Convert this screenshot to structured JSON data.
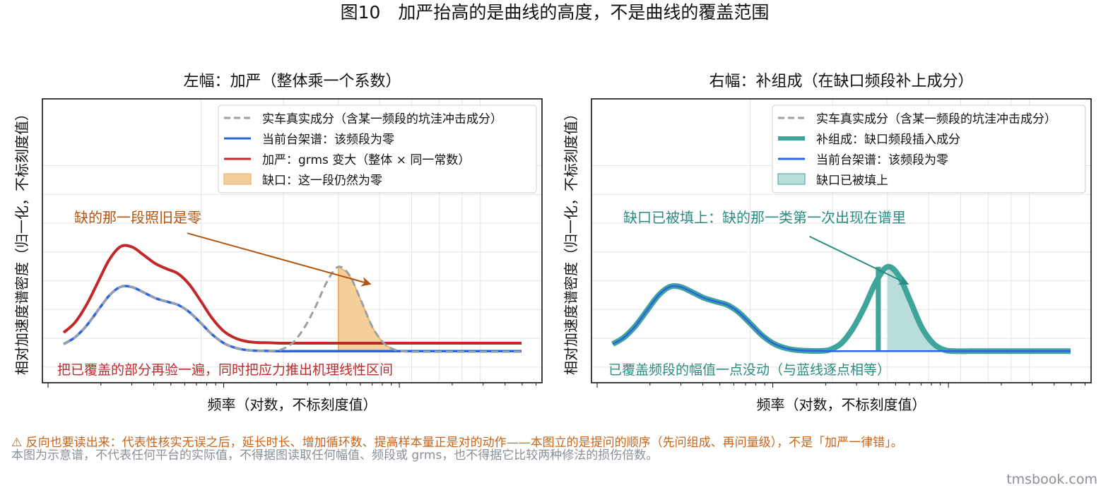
{
  "figure": {
    "title": "图10　加严抬高的是曲线的高度，不是曲线的覆盖范围",
    "warning": "⚠ 反向也要读出来：代表性核实无误之后，延长时长、增加循环数、提高样本量正是对的动作——本图立的是提问的顺序（先问组成、再问量级），不是「加严一律错」。",
    "disclaimer": "本图为示意谱，不代表任何平台的实际值，不得据图读取任何幅值、频段或 grms，也不得据它比较两种修法的损伤倍数。",
    "brand": "tmsbook.com"
  },
  "colors": {
    "truth": "#9aa0a8",
    "current": "#2b63e0",
    "severe": "#c0282a",
    "gap_fill": "#f5cf9a",
    "gap_edge": "#e5a75a",
    "fill_green": "#3fa59a",
    "fill_green_light": "#b9ddd9",
    "annot_orange": "#b5520d",
    "annot_red": "#c0282a",
    "annot_teal": "#2a8c80"
  },
  "chart_data": [
    {
      "type": "line",
      "title": "左幅：加严（整体乘一个系数）",
      "xlabel": "频率（对数，不标刻度值）",
      "ylabel": "相对加速度谱密度（归一化，不标刻度值）",
      "xscale": "log",
      "xlim": [
        0,
        1
      ],
      "ylim": [
        0,
        1
      ],
      "grid": true,
      "legend_position": "top-right",
      "x": [
        0.0,
        0.025,
        0.05,
        0.075,
        0.1,
        0.125,
        0.15,
        0.175,
        0.2,
        0.225,
        0.25,
        0.275,
        0.3,
        0.325,
        0.35,
        0.375,
        0.4,
        0.425,
        0.45,
        0.475,
        0.5,
        0.525,
        0.55,
        0.575,
        0.6,
        0.625,
        0.65,
        0.675,
        0.7,
        0.725,
        0.75,
        0.775,
        0.8,
        0.825,
        0.85,
        0.875,
        0.9,
        0.925,
        0.95,
        0.975,
        1.0
      ],
      "series": [
        {
          "name": "实车真实成分（含某一频段的坑洼冲击成分）",
          "style": "dashed",
          "values": [
            0.104,
            0.135,
            0.187,
            0.256,
            0.324,
            0.363,
            0.361,
            0.337,
            0.312,
            0.296,
            0.281,
            0.248,
            0.198,
            0.146,
            0.108,
            0.087,
            0.077,
            0.074,
            0.073,
            0.079,
            0.109,
            0.176,
            0.272,
            0.385,
            0.453,
            0.412,
            0.298,
            0.179,
            0.107,
            0.077,
            0.07,
            0.069,
            0.069,
            0.069,
            0.069,
            0.069,
            0.069,
            0.069,
            0.069,
            0.069,
            0.069
          ]
        },
        {
          "name": "当前台架谱：该频段为零",
          "values": [
            0.104,
            0.135,
            0.187,
            0.256,
            0.324,
            0.363,
            0.361,
            0.337,
            0.312,
            0.296,
            0.281,
            0.248,
            0.198,
            0.146,
            0.108,
            0.087,
            0.077,
            0.074,
            0.073,
            0.072,
            0.072,
            0.072,
            0.072,
            0.072,
            0.072,
            0.072,
            0.072,
            0.072,
            0.072,
            0.072,
            0.072,
            0.072,
            0.072,
            0.072,
            0.072,
            0.072,
            0.072,
            0.072,
            0.072,
            0.072,
            0.072
          ]
        },
        {
          "name": "加严：grms 变大（整体 × 同一常数）",
          "values": [
            0.156,
            0.202,
            0.281,
            0.384,
            0.486,
            0.545,
            0.542,
            0.506,
            0.468,
            0.444,
            0.422,
            0.372,
            0.297,
            0.219,
            0.162,
            0.131,
            0.116,
            0.111,
            0.11,
            0.108,
            0.108,
            0.108,
            0.108,
            0.108,
            0.108,
            0.108,
            0.108,
            0.108,
            0.108,
            0.108,
            0.108,
            0.108,
            0.108,
            0.108,
            0.108,
            0.108,
            0.108,
            0.108,
            0.108,
            0.108,
            0.108
          ]
        }
      ],
      "gap_band": {
        "name": "缺口：这一段仍然为零",
        "x_range": [
          0.58,
          0.765
        ]
      },
      "annotations": [
        {
          "text": "缺的那一段照旧是零",
          "color_key": "annot_orange",
          "arrow_from": [
            0.27,
            0.605
          ],
          "arrow_to": [
            0.67,
            0.375
          ]
        },
        {
          "text": "把已覆盖的部分再验一遍，同时把应力推出机理线性区间",
          "color_key": "annot_red"
        }
      ]
    },
    {
      "type": "line",
      "title": "右幅：补组成（在缺口频段补上成分）",
      "xlabel": "频率（对数，不标刻度值）",
      "ylabel": "相对加速度谱密度（归一化，不标刻度值）",
      "xscale": "log",
      "xlim": [
        0,
        1
      ],
      "ylim": [
        0,
        1
      ],
      "grid": true,
      "legend_position": "top-right",
      "x": [
        0.0,
        0.025,
        0.05,
        0.075,
        0.1,
        0.125,
        0.15,
        0.175,
        0.2,
        0.225,
        0.25,
        0.275,
        0.3,
        0.325,
        0.35,
        0.375,
        0.4,
        0.425,
        0.45,
        0.475,
        0.5,
        0.525,
        0.55,
        0.575,
        0.6,
        0.625,
        0.65,
        0.675,
        0.7,
        0.725,
        0.75,
        0.775,
        0.8,
        0.825,
        0.85,
        0.875,
        0.9,
        0.925,
        0.95,
        0.975,
        1.0
      ],
      "series": [
        {
          "name": "实车真实成分（含某一频段的坑洼冲击成分）",
          "style": "dashed",
          "values": [
            0.104,
            0.135,
            0.187,
            0.256,
            0.324,
            0.363,
            0.361,
            0.337,
            0.312,
            0.296,
            0.281,
            0.248,
            0.198,
            0.146,
            0.108,
            0.087,
            0.077,
            0.074,
            0.073,
            0.079,
            0.109,
            0.176,
            0.272,
            0.385,
            0.453,
            0.412,
            0.298,
            0.179,
            0.107,
            0.077,
            0.07,
            0.069,
            0.069,
            0.069,
            0.069,
            0.069,
            0.069,
            0.069,
            0.069,
            0.069,
            0.069
          ]
        },
        {
          "name": "补组成：缺口频段插入成分",
          "values": [
            0.104,
            0.135,
            0.187,
            0.256,
            0.324,
            0.363,
            0.361,
            0.337,
            0.312,
            0.296,
            0.281,
            0.248,
            0.198,
            0.146,
            0.108,
            0.087,
            0.077,
            0.074,
            0.073,
            0.079,
            0.109,
            0.176,
            0.272,
            0.385,
            0.453,
            0.412,
            0.298,
            0.179,
            0.107,
            0.077,
            0.072,
            0.072,
            0.072,
            0.072,
            0.072,
            0.072,
            0.072,
            0.072,
            0.072,
            0.072,
            0.072
          ]
        },
        {
          "name": "当前台架谱：该频段为零",
          "values": [
            0.104,
            0.135,
            0.187,
            0.256,
            0.324,
            0.363,
            0.361,
            0.337,
            0.312,
            0.296,
            0.281,
            0.248,
            0.198,
            0.146,
            0.108,
            0.087,
            0.077,
            0.074,
            0.073,
            0.072,
            0.072,
            0.072,
            0.072,
            0.072,
            0.072,
            0.072,
            0.072,
            0.072,
            0.072,
            0.072,
            0.072,
            0.072,
            0.072,
            0.072,
            0.072,
            0.072,
            0.072,
            0.072,
            0.072,
            0.072,
            0.072
          ]
        }
      ],
      "gap_band": {
        "name": "缺口已被填上",
        "x_range": [
          0.58,
          0.765
        ]
      },
      "annotations": [
        {
          "text": "缺口已被填上：缺的那一类第一次出现在谱里",
          "color_key": "annot_teal",
          "arrow_from": [
            0.43,
            0.59
          ],
          "arrow_to": [
            0.645,
            0.375
          ]
        },
        {
          "text": "已覆盖频段的幅值一点没动（与蓝线逐点相等）",
          "color_key": "annot_teal"
        }
      ]
    }
  ]
}
